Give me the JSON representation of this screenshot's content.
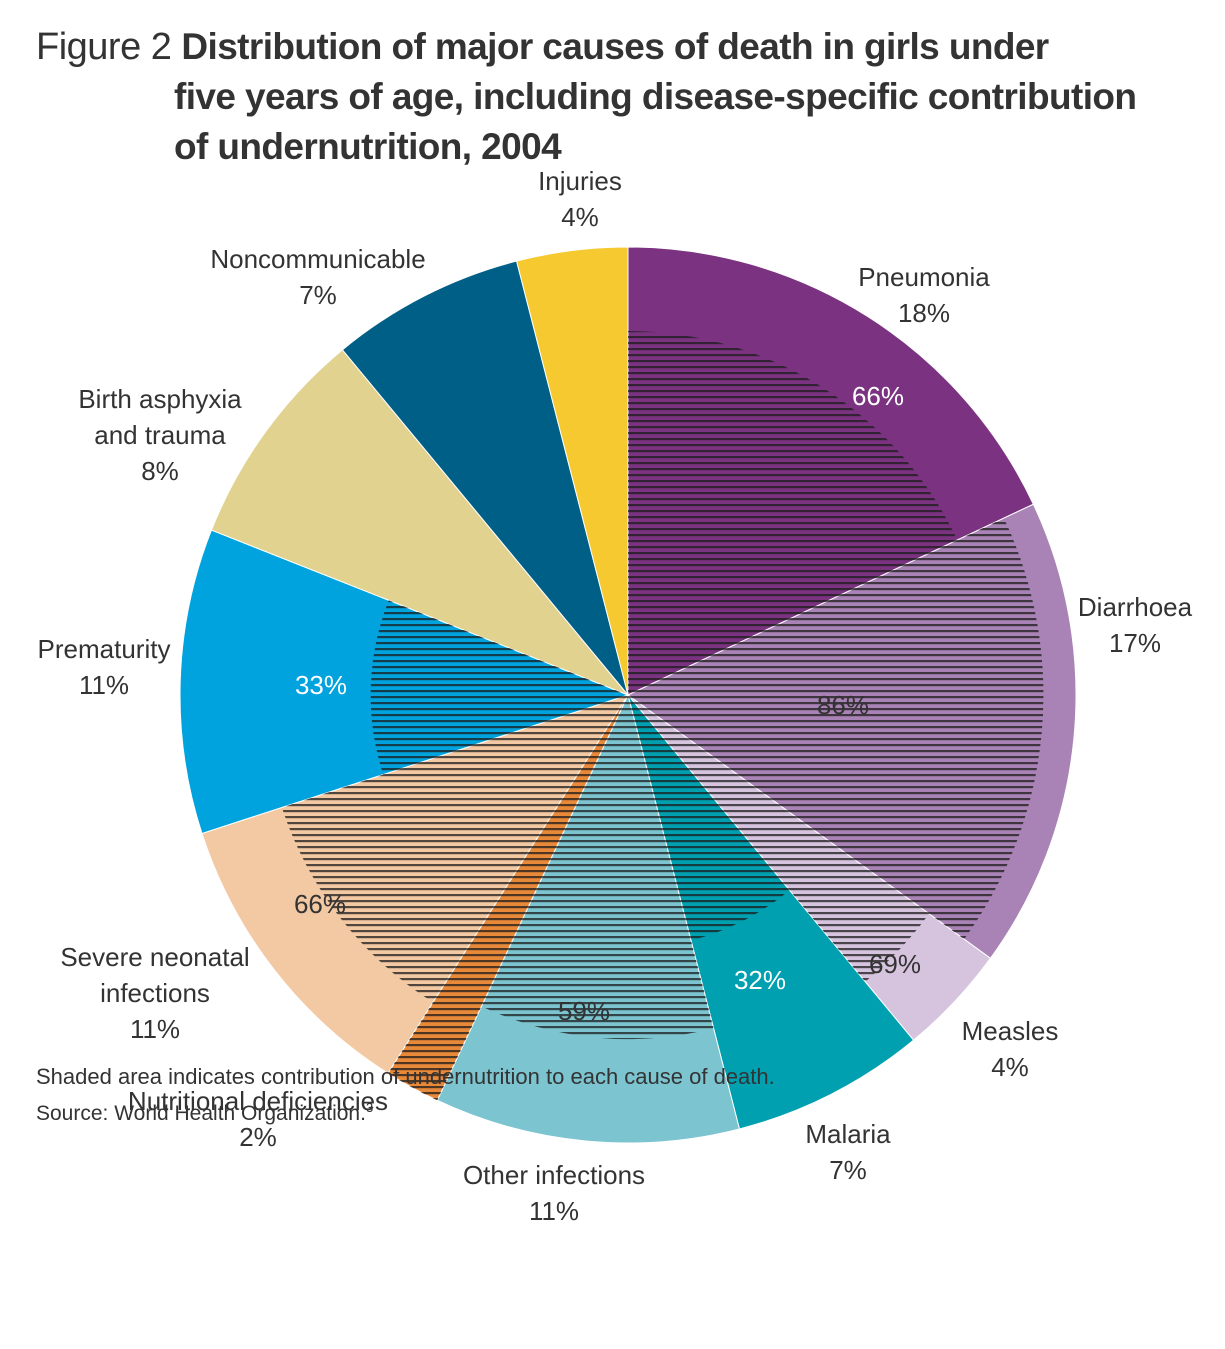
{
  "figure_label": "Figure 2",
  "title_lines": [
    "Distribution of major causes of death in girls under",
    "five years of age, including disease-specific contribution",
    "of undernutrition, 2004"
  ],
  "footer": {
    "note": "Shaded area indicates contribution of undernutrition to each cause of death.",
    "source": "Source: World Health Organization.",
    "source_ref": "3"
  },
  "chart_data": {
    "type": "pie",
    "title": "Distribution of major causes of death in girls under five years of age, including disease-specific contribution of undernutrition, 2004",
    "start": "12 o'clock, clockwise",
    "slices": [
      {
        "name": "Pneumonia",
        "value": 18,
        "label": "18%",
        "color": "#7b3381",
        "undernutrition": 66,
        "inner_label": "66%"
      },
      {
        "name": "Diarrhoea",
        "value": 17,
        "label": "17%",
        "color": "#a983b5",
        "undernutrition": 86,
        "inner_label": "86%"
      },
      {
        "name": "Measles",
        "value": 4,
        "label": "4%",
        "color": "#d6c4df",
        "undernutrition": 69,
        "inner_label": "69%"
      },
      {
        "name": "Malaria",
        "value": 7,
        "label": "7%",
        "color": "#00a0b0",
        "undernutrition": 32,
        "inner_label": "32%"
      },
      {
        "name": "Other infections",
        "value": 11,
        "label": "11%",
        "color": "#7bc4d0",
        "undernutrition": 59,
        "inner_label": "59%"
      },
      {
        "name": "Nutritional deficiencies",
        "value": 2,
        "label": "2%",
        "color": "#e8893a",
        "undernutrition": 100,
        "inner_label": ""
      },
      {
        "name": "Severe neonatal infections",
        "value": 11,
        "label": "11%",
        "color": "#f3c9a3",
        "undernutrition": 66,
        "inner_label": "66%"
      },
      {
        "name": "Prematurity",
        "value": 11,
        "label": "11%",
        "color": "#00a3de",
        "undernutrition": 33,
        "inner_label": "33%"
      },
      {
        "name": "Birth asphyxia and trauma",
        "value": 8,
        "label": "8%",
        "color": "#e1d28f",
        "undernutrition": 0,
        "inner_label": ""
      },
      {
        "name": "Noncommunicable",
        "value": 7,
        "label": "7%",
        "color": "#005f87",
        "undernutrition": 0,
        "inner_label": ""
      },
      {
        "name": "Injuries",
        "value": 4,
        "label": "4%",
        "color": "#f6c930",
        "undernutrition": 0,
        "inner_label": ""
      }
    ]
  }
}
